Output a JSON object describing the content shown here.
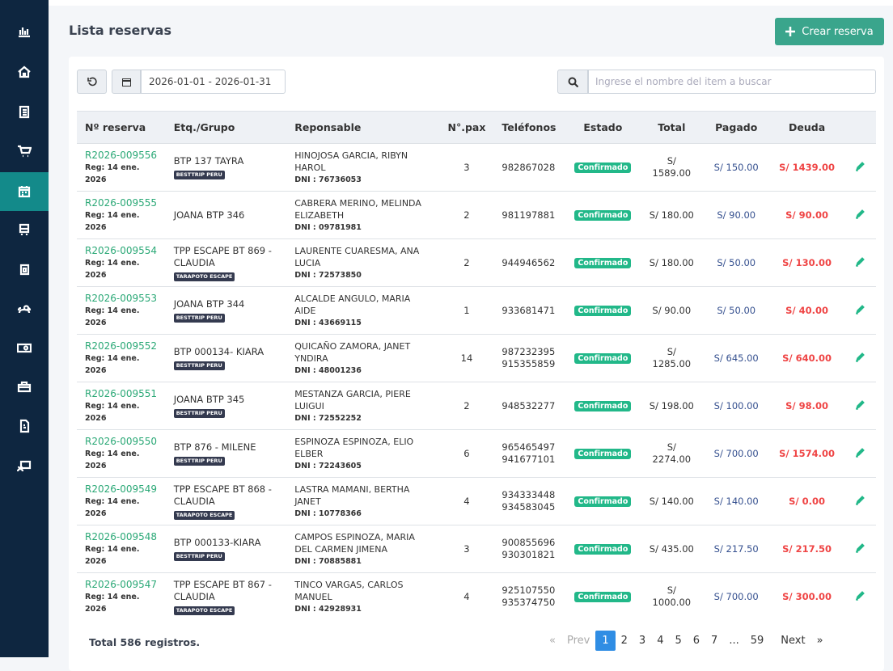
{
  "header": {
    "title": "Lista reservas",
    "create_button": "Crear reserva"
  },
  "filters": {
    "date_range": "2026-01-01 - 2026-01-31",
    "search_placeholder": "Ingrese el nombre del item a buscar"
  },
  "table": {
    "columns": [
      "Nº reserva",
      "Etq./Grupo",
      "Reponsable",
      "N°.pax",
      "Teléfonos",
      "Estado",
      "Total",
      "Pagado",
      "Deuda"
    ],
    "rows": [
      {
        "code": "R2026-009556",
        "reg": "Reg: 14 ene. 2026",
        "group": "BTP 137 TAYRA",
        "tag": "BESTTRIP PERU",
        "person": "HINOJOSA GARCIA, RIBYN HAROL",
        "dni": "DNI : 76736053",
        "pax": 3,
        "phones": [
          "982867028"
        ],
        "status": "Confirmado",
        "total": "S/ 1589.00",
        "paid": "S/ 150.00",
        "debt": "S/ 1439.00"
      },
      {
        "code": "R2026-009555",
        "reg": "Reg: 14 ene. 2026",
        "group": "JOANA BTP 346",
        "person": "CABRERA MERINO, MELINDA ELIZABETH",
        "dni": "DNI : 09781981",
        "pax": 2,
        "phones": [
          "981197881"
        ],
        "status": "Confirmado",
        "total": "S/ 180.00",
        "paid": "S/ 90.00",
        "debt": "S/ 90.00"
      },
      {
        "code": "R2026-009554",
        "reg": "Reg: 14 ene. 2026",
        "group": "TPP ESCAPE BT 869 - CLAUDIA",
        "tag": "TARAPOTO ESCAPE",
        "person": "LAURENTE CUARESMA, ANA LUCIA",
        "dni": "DNI : 72573850",
        "pax": 2,
        "phones": [
          "944946562"
        ],
        "status": "Confirmado",
        "total": "S/ 180.00",
        "paid": "S/ 50.00",
        "debt": "S/ 130.00"
      },
      {
        "code": "R2026-009553",
        "reg": "Reg: 14 ene. 2026",
        "group": "JOANA BTP 344",
        "tag": "BESTTRIP PERU",
        "person": "ALCALDE ANGULO, MARIA AIDE",
        "dni": "DNI : 43669115",
        "pax": 1,
        "phones": [
          "933681471"
        ],
        "status": "Confirmado",
        "total": "S/ 90.00",
        "paid": "S/ 50.00",
        "debt": "S/ 40.00"
      },
      {
        "code": "R2026-009552",
        "reg": "Reg: 14 ene. 2026",
        "group": "BTP 000134- KIARA",
        "tag": "BESTTRIP PERU",
        "person": "QUICAÑO ZAMORA, JANET YNDIRA",
        "dni": "DNI : 48001236",
        "pax": 14,
        "phones": [
          "987232395",
          "915355859"
        ],
        "status": "Confirmado",
        "total": "S/ 1285.00",
        "paid": "S/ 645.00",
        "debt": "S/ 640.00"
      },
      {
        "code": "R2026-009551",
        "reg": "Reg: 14 ene. 2026",
        "group": "JOANA BTP 345",
        "tag": "BESTTRIP PERU",
        "person": "MESTANZA GARCIA, PIERE LUIGUI",
        "dni": "DNI : 72552252",
        "pax": 2,
        "phones": [
          "948532277"
        ],
        "status": "Confirmado",
        "total": "S/ 198.00",
        "paid": "S/ 100.00",
        "debt": "S/ 98.00"
      },
      {
        "code": "R2026-009550",
        "reg": "Reg: 14 ene. 2026",
        "group": "BTP 876 - MILENE",
        "tag": "BESTTRIP PERU",
        "person": "ESPINOZA ESPINOZA, ELIO ELBER",
        "dni": "DNI : 72243605",
        "pax": 6,
        "phones": [
          "965465497",
          "941677101"
        ],
        "status": "Confirmado",
        "total": "S/ 2274.00",
        "paid": "S/ 700.00",
        "debt": "S/ 1574.00"
      },
      {
        "code": "R2026-009549",
        "reg": "Reg: 14 ene. 2026",
        "group": "TPP ESCAPE BT 868 - CLAUDIA",
        "tag": "TARAPOTO ESCAPE",
        "person": "LASTRA MAMANI, BERTHA JANET",
        "dni": "DNI : 10778366",
        "pax": 4,
        "phones": [
          "934333448",
          "934583045"
        ],
        "status": "Confirmado",
        "total": "S/ 140.00",
        "paid": "S/ 140.00",
        "debt": "S/ 0.00"
      },
      {
        "code": "R2026-009548",
        "reg": "Reg: 14 ene. 2026",
        "group": "BTP 000133-KIARA",
        "tag": "BESTTRIP PERU",
        "person": "CAMPOS ESPINOZA, MARIA DEL CARMEN JIMENA",
        "dni": "DNI : 70885881",
        "pax": 3,
        "phones": [
          "900855696",
          "930301821"
        ],
        "status": "Confirmado",
        "total": "S/ 435.00",
        "paid": "S/ 217.50",
        "debt": "S/ 217.50"
      },
      {
        "code": "R2026-009547",
        "reg": "Reg: 14 ene. 2026",
        "group": "TPP ESCAPE BT 867 - CLAUDIA",
        "tag": "TARAPOTO ESCAPE",
        "person": "TINCO VARGAS, CARLOS MANUEL",
        "dni": "DNI : 42928931",
        "pax": 4,
        "phones": [
          "925107550",
          "935374750"
        ],
        "status": "Confirmado",
        "total": "S/ 1000.00",
        "paid": "S/ 700.00",
        "debt": "S/ 300.00"
      }
    ]
  },
  "footer": {
    "total": "Total 586 registros.",
    "pagination": {
      "first": "«",
      "prev": "Prev",
      "pages": [
        "1",
        "2",
        "3",
        "4",
        "5",
        "6",
        "7",
        "...",
        "59"
      ],
      "next": "Next",
      "last": "»"
    }
  }
}
